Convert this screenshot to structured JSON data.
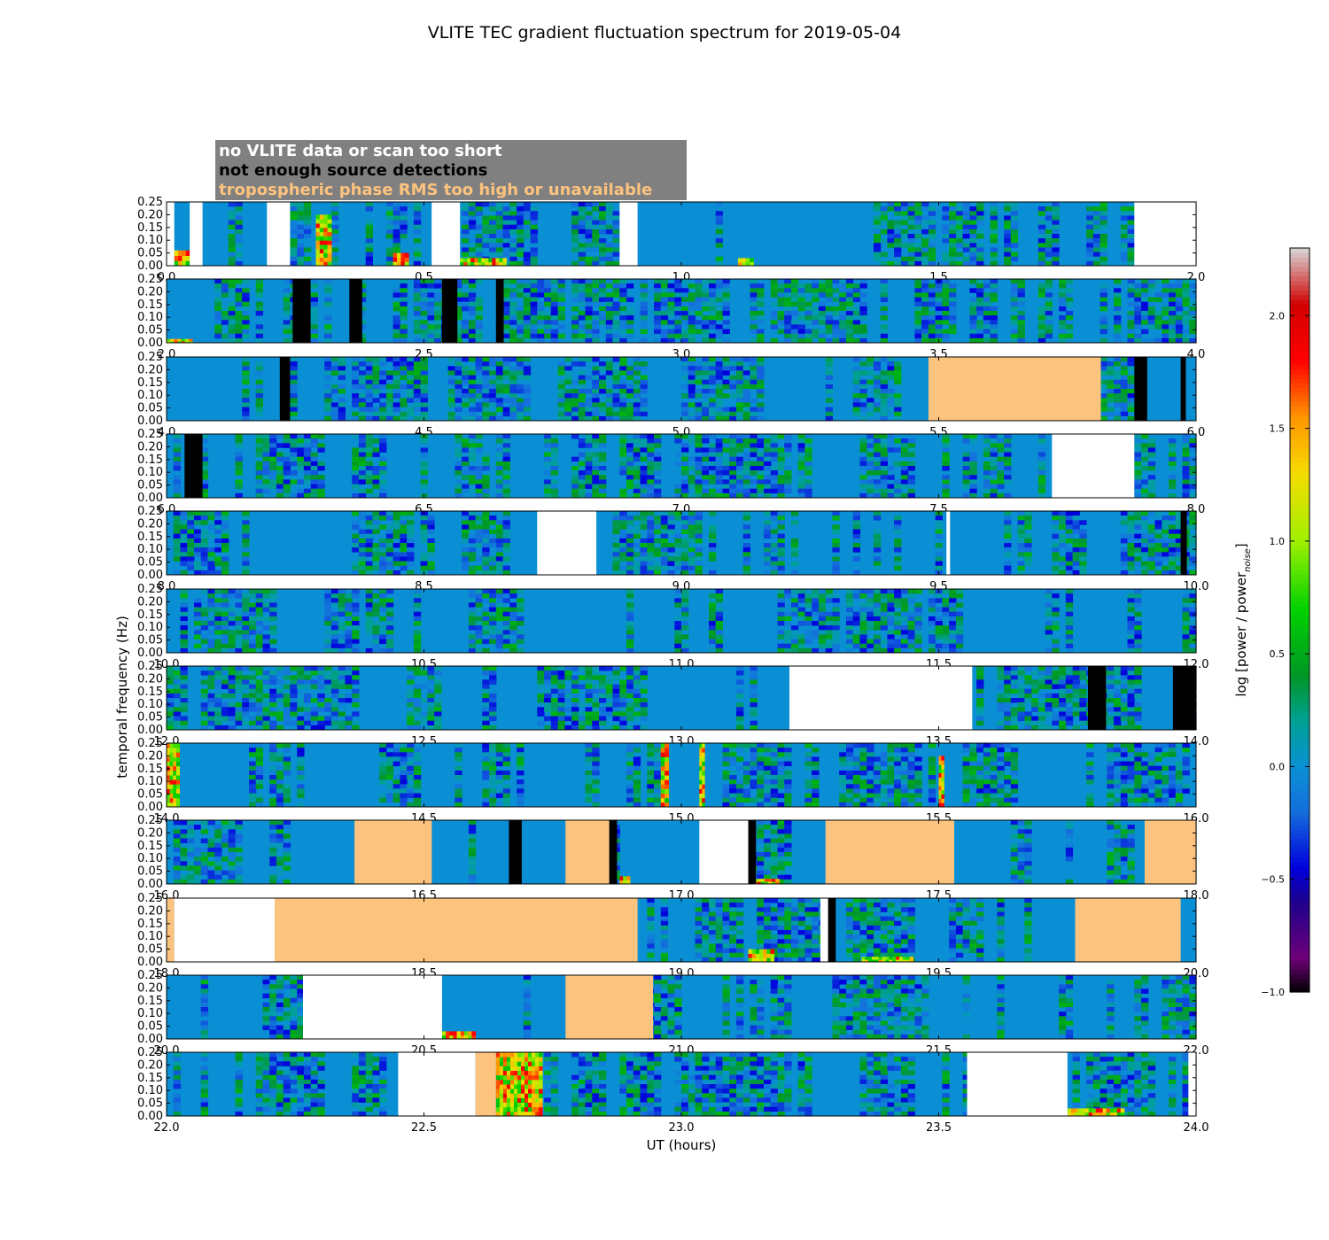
{
  "chart_data": {
    "type": "heatmap",
    "title": "VLITE TEC gradient fluctuation spectrum for 2019-05-04",
    "ylabel": "temporal frequency (Hz)",
    "xlabel": "UT (hours)",
    "colorbar_label": "log [power / power",
    "colorbar_label_sub": "noise",
    "colorbar_range": [
      -1.0,
      2.3
    ],
    "colorbar_ticks": [
      "−1.0",
      "−0.5",
      "0.0",
      "0.5",
      "1.0",
      "1.5",
      "2.0"
    ],
    "colorbar_tick_values": [
      -1.0,
      -0.5,
      0.0,
      0.5,
      1.0,
      1.5,
      2.0
    ],
    "y_ticks": [
      "0.00",
      "0.05",
      "0.10",
      "0.15",
      "0.20",
      "0.25"
    ],
    "y_range": [
      0.0,
      0.25
    ],
    "legend": [
      {
        "text": "no VLITE data or scan too short",
        "color": "#ffffff"
      },
      {
        "text": "not enough source detections",
        "color": "#000000"
      },
      {
        "text": "tropospheric phase RMS too high or unavailable",
        "color": "#fcc37e"
      }
    ],
    "colors": {
      "no_data": "#ffffff",
      "few_detections": "#000000",
      "troposphere": "#fcc37e",
      "baseline": "#0a8fd4",
      "legend_bg": "#808080"
    },
    "panels": [
      {
        "range": [
          0.0,
          2.0
        ],
        "ticks": [
          "0.0",
          "0.5",
          "1.0",
          "1.5",
          "2.0"
        ],
        "masks": [
          [
            "w",
            0.0,
            0.015
          ],
          [
            "w",
            0.045,
            0.07
          ],
          [
            "w",
            0.195,
            0.24
          ],
          [
            "w",
            0.515,
            0.57
          ],
          [
            "w",
            0.88,
            0.915
          ],
          [
            "w",
            1.88,
            2.0
          ]
        ],
        "hot": [
          [
            0.015,
            0.045,
            0.06
          ],
          [
            0.29,
            0.32,
            0.2
          ],
          [
            0.44,
            0.47,
            0.05
          ],
          [
            0.57,
            0.66,
            0.03
          ],
          [
            1.11,
            1.14,
            0.03
          ]
        ]
      },
      {
        "range": [
          2.0,
          4.0
        ],
        "ticks": [
          "2.0",
          "2.5",
          "3.0",
          "3.5",
          "4.0"
        ],
        "masks": [
          [
            "b",
            2.245,
            2.28
          ],
          [
            "b",
            2.355,
            2.38
          ],
          [
            "b",
            2.535,
            2.565
          ],
          [
            "b",
            2.64,
            2.655
          ]
        ],
        "hot": [
          [
            2.0,
            2.05,
            0.015
          ]
        ]
      },
      {
        "range": [
          4.0,
          6.0
        ],
        "ticks": [
          "4.0",
          "4.5",
          "5.0",
          "5.5",
          "6.0"
        ],
        "masks": [
          [
            "b",
            4.22,
            4.24
          ],
          [
            "t",
            5.48,
            5.815
          ],
          [
            "b",
            5.88,
            5.905
          ],
          [
            "b",
            5.97,
            5.98
          ]
        ],
        "hot": []
      },
      {
        "range": [
          6.0,
          8.0
        ],
        "ticks": [
          "6.0",
          "6.5",
          "7.0",
          "7.5",
          "8.0"
        ],
        "masks": [
          [
            "b",
            6.035,
            6.045
          ],
          [
            "b",
            6.045,
            6.07
          ],
          [
            "w",
            7.72,
            7.88
          ]
        ],
        "hot": []
      },
      {
        "range": [
          8.0,
          10.0
        ],
        "ticks": [
          "8.0",
          "8.5",
          "9.0",
          "9.5",
          "10.0"
        ],
        "masks": [
          [
            "w",
            8.72,
            8.835
          ],
          [
            "w",
            9.515,
            9.522
          ],
          [
            "b",
            9.97,
            9.982
          ]
        ],
        "hot": []
      },
      {
        "range": [
          10.0,
          12.0
        ],
        "ticks": [
          "10.0",
          "10.5",
          "11.0",
          "11.5",
          "12.0"
        ],
        "masks": [],
        "hot": []
      },
      {
        "range": [
          12.0,
          14.0
        ],
        "ticks": [
          "12.0",
          "12.5",
          "13.0",
          "13.5",
          "14.0"
        ],
        "masks": [
          [
            "w",
            13.21,
            13.565
          ],
          [
            "b",
            13.79,
            13.825
          ],
          [
            "b",
            13.955,
            14.0
          ]
        ],
        "hot": []
      },
      {
        "range": [
          14.0,
          16.0
        ],
        "ticks": [
          "14.0",
          "14.5",
          "15.0",
          "15.5",
          "16.0"
        ],
        "masks": [],
        "hot": [
          [
            14.0,
            14.025,
            0.25
          ],
          [
            15.035,
            15.045,
            0.25
          ],
          [
            14.96,
            14.975,
            0.25
          ],
          [
            15.5,
            15.51,
            0.2
          ]
        ]
      },
      {
        "range": [
          16.0,
          18.0
        ],
        "ticks": [
          "16.0",
          "16.5",
          "17.0",
          "17.5",
          "18.0"
        ],
        "masks": [
          [
            "t",
            16.365,
            16.515
          ],
          [
            "b",
            16.665,
            16.69
          ],
          [
            "t",
            16.775,
            16.86
          ],
          [
            "b",
            16.86,
            16.875
          ],
          [
            "w",
            17.035,
            17.13
          ],
          [
            "b",
            17.13,
            17.145
          ],
          [
            "t",
            17.28,
            17.53
          ],
          [
            "t",
            17.9,
            18.0
          ]
        ],
        "hot": [
          [
            16.88,
            16.9,
            0.03
          ],
          [
            17.14,
            17.19,
            0.02
          ]
        ]
      },
      {
        "range": [
          18.0,
          20.0
        ],
        "ticks": [
          "18.0",
          "18.5",
          "19.0",
          "19.5",
          "20.0"
        ],
        "masks": [
          [
            "t",
            18.0,
            18.015
          ],
          [
            "w",
            18.015,
            18.21
          ],
          [
            "t",
            18.21,
            18.915
          ],
          [
            "b",
            19.285,
            19.3
          ],
          [
            "w",
            19.27,
            19.285
          ],
          [
            "t",
            19.765,
            19.97
          ]
        ],
        "hot": [
          [
            19.13,
            19.18,
            0.05
          ],
          [
            19.35,
            19.45,
            0.02
          ]
        ]
      },
      {
        "range": [
          20.0,
          22.0
        ],
        "ticks": [
          "20.0",
          "20.5",
          "21.0",
          "21.5",
          "22.0"
        ],
        "masks": [
          [
            "w",
            20.265,
            20.535
          ],
          [
            "t",
            20.775,
            20.945
          ]
        ],
        "hot": [
          [
            20.535,
            20.6,
            0.03
          ]
        ]
      },
      {
        "range": [
          22.0,
          24.0
        ],
        "ticks": [
          "22.0",
          "22.5",
          "23.0",
          "23.5",
          "24.0"
        ],
        "masks": [
          [
            "w",
            22.45,
            22.6
          ],
          [
            "t",
            22.6,
            22.64
          ],
          [
            "w",
            23.555,
            23.75
          ],
          [
            "w",
            23.985,
            24.0
          ]
        ],
        "hot": [
          [
            22.64,
            22.73,
            0.25
          ],
          [
            23.75,
            23.86,
            0.03
          ]
        ]
      }
    ]
  }
}
